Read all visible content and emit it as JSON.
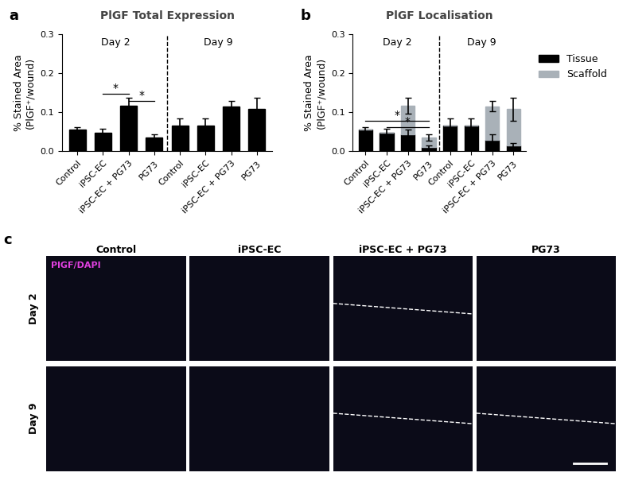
{
  "chart_data": [
    {
      "type": "bar",
      "panel": "a",
      "title": "PlGF Total Expression",
      "y_label": "% Stained Area\n(PlGF⁺/wound)",
      "categories": [
        "Control",
        "iPSC-EC",
        "iPSC-EC + PG73",
        "PG73",
        "Control",
        "iPSC-EC",
        "iPSC-EC + PG73",
        "PG73"
      ],
      "groups": [
        {
          "label": "Day 2",
          "start": 0,
          "end": 3
        },
        {
          "label": "Day 9",
          "start": 4,
          "end": 7
        }
      ],
      "series": [
        {
          "name": "PlGF",
          "color": "#000000",
          "values": [
            0.056,
            0.048,
            0.117,
            0.035,
            0.065,
            0.065,
            0.115,
            0.108
          ],
          "errors": [
            0.006,
            0.01,
            0.02,
            0.008,
            0.02,
            0.02,
            0.013,
            0.03
          ]
        }
      ],
      "significance": [
        {
          "from": 1,
          "to": 2,
          "y": 0.148,
          "label": "*"
        },
        {
          "from": 2,
          "to": 3,
          "y": 0.128,
          "label": "*"
        }
      ],
      "ylim": [
        0,
        0.3
      ],
      "yticks": [
        0.0,
        0.1,
        0.2,
        0.3
      ]
    },
    {
      "type": "bar",
      "panel": "b",
      "title": "PlGF Localisation",
      "stacked": true,
      "legend": "right",
      "y_label": "% Stained Area\n(PlGF⁺/wound)",
      "categories": [
        "Control",
        "iPSC-EC",
        "iPSC-EC + PG73",
        "PG73",
        "Control",
        "iPSC-EC",
        "iPSC-EC + PG73",
        "PG73"
      ],
      "groups": [
        {
          "label": "Day 2",
          "start": 0,
          "end": 3
        },
        {
          "label": "Day 9",
          "start": 4,
          "end": 7
        }
      ],
      "series": [
        {
          "name": "Tissue",
          "color": "#000000",
          "values": [
            0.056,
            0.048,
            0.043,
            0.01,
            0.065,
            0.065,
            0.03,
            0.015
          ],
          "errors": [
            0.006,
            0.01,
            0.012,
            0.005,
            0.02,
            0.02,
            0.013,
            0.006
          ]
        },
        {
          "name": "Scaffold",
          "color": "#a9b1b8",
          "values": [
            0,
            0,
            0.074,
            0.025,
            0,
            0,
            0.085,
            0.093
          ],
          "errors": [
            null,
            null,
            0.02,
            0.008,
            null,
            null,
            0.013,
            0.03
          ]
        }
      ],
      "significance": [
        {
          "from": 0,
          "to": 3,
          "y": 0.078,
          "label": "*"
        },
        {
          "from": 1,
          "to": 3,
          "y": 0.062,
          "label": "*"
        }
      ],
      "ylim": [
        0,
        0.3
      ],
      "yticks": [
        0.0,
        0.1,
        0.2,
        0.3
      ]
    }
  ],
  "image_panel": {
    "panel": "c",
    "stain_label": "PlGF/DAPI",
    "columns": [
      "Control",
      "iPSC-EC",
      "iPSC-EC + PG73",
      "PG73"
    ],
    "rows": [
      "Day 2",
      "Day 9"
    ]
  }
}
